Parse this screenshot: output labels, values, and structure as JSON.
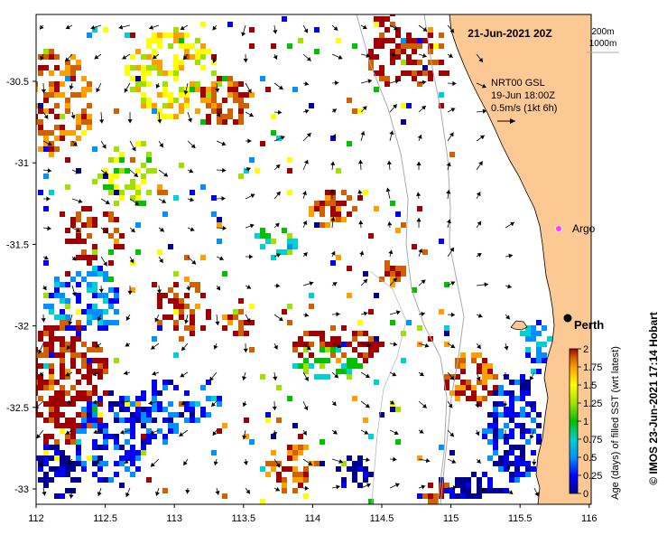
{
  "title": "21-Jun-2021 20Z",
  "depth_legend": {
    "contour_1": "200m",
    "contour_2": "1000m"
  },
  "current_info": {
    "model_line": "NRT00 GSL",
    "time_line": "19-Jun 18:00Z",
    "scale_line": "0.5m/s (1kt 6h)"
  },
  "places": {
    "argo_label": "Argo",
    "perth_label": "Perth"
  },
  "axes": {
    "x_ticks": [
      "112",
      "112.5",
      "113",
      "113.5",
      "114",
      "114.5",
      "115",
      "115.5",
      "116"
    ],
    "y_ticks": [
      "-30.5",
      "-31",
      "-31.5",
      "-32",
      "-32.5",
      "-33"
    ]
  },
  "colorbar": {
    "label": "Age (days) of filled SST (wrt latest)",
    "ticks": [
      "0",
      "0.25",
      "0.5",
      "0.75",
      "1",
      "1.25",
      "1.5",
      "1.75",
      "2"
    ],
    "colors": [
      "#000090",
      "#0000ff",
      "#0090ff",
      "#00d0d0",
      "#00c000",
      "#a0e000",
      "#ffff00",
      "#ffa000",
      "#d06000",
      "#a00000"
    ]
  },
  "credit": "© IMOS 23-Jun-2021 17:14 Hobart",
  "colors": {
    "land": "#fcc894",
    "ocean": "#ffffff",
    "isobath": "#aaaaaa"
  }
}
